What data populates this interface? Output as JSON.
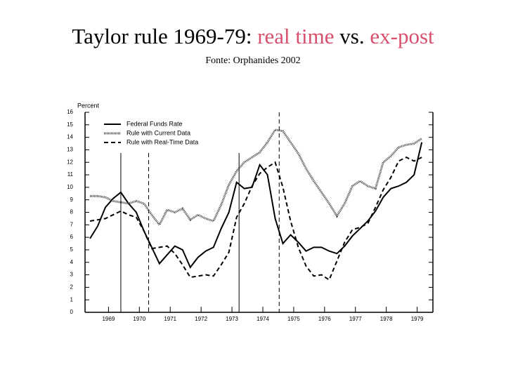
{
  "chart_data": {
    "type": "line",
    "title_parts": [
      "Taylor rule 1969-79:",
      "real time",
      "vs.",
      "ex-post"
    ],
    "title_colors": [
      "#000000",
      "#d9506e",
      "#000000",
      "#d9506e"
    ],
    "subtitle": "Fonte: Orphanides 2002",
    "ylabel": "Percent",
    "xlim": [
      1968.84,
      1980.11
    ],
    "ylim": [
      0,
      16
    ],
    "yticks": [
      0,
      1,
      2,
      3,
      4,
      5,
      6,
      7,
      8,
      9,
      10,
      11,
      12,
      13,
      14,
      15,
      16
    ],
    "xticks": [
      {
        "value": 1969.6,
        "label": "1969"
      },
      {
        "value": 1970.6,
        "label": "1970"
      },
      {
        "value": 1971.6,
        "label": "1971"
      },
      {
        "value": 1972.6,
        "label": "1972"
      },
      {
        "value": 1973.6,
        "label": "1973"
      },
      {
        "value": 1974.6,
        "label": "1974"
      },
      {
        "value": 1975.6,
        "label": "1975"
      },
      {
        "value": 1976.6,
        "label": "1976"
      },
      {
        "value": 1977.6,
        "label": "1977"
      },
      {
        "value": 1978.6,
        "label": "1978"
      },
      {
        "value": 1979.6,
        "label": "1979"
      }
    ],
    "vlines": [
      {
        "x": 1970.0,
        "dash": "none"
      },
      {
        "x": 1970.9,
        "dash": "6,4"
      },
      {
        "x": 1973.83,
        "dash": "none"
      },
      {
        "x": 1975.13,
        "dash": "6,4"
      }
    ],
    "x": [
      1969.0,
      1969.25,
      1969.5,
      1969.75,
      1970.0,
      1970.25,
      1970.5,
      1970.75,
      1971.0,
      1971.25,
      1971.5,
      1971.75,
      1972.0,
      1972.25,
      1972.5,
      1972.75,
      1973.0,
      1973.25,
      1973.5,
      1973.75,
      1974.0,
      1974.25,
      1974.5,
      1974.75,
      1975.0,
      1975.25,
      1975.5,
      1975.75,
      1976.0,
      1976.25,
      1976.5,
      1976.75,
      1977.0,
      1977.25,
      1977.5,
      1977.75,
      1978.0,
      1978.25,
      1978.5,
      1978.75,
      1979.0,
      1979.25,
      1979.5,
      1979.75
    ],
    "series": [
      {
        "name": "Federal Funds Rate",
        "color": "#000000",
        "width": 2,
        "dash": "none",
        "values": [
          5.9,
          6.9,
          8.4,
          9.1,
          9.6,
          8.7,
          8.0,
          6.5,
          5.2,
          3.9,
          4.6,
          5.3,
          5.0,
          3.6,
          4.4,
          4.9,
          5.2,
          6.7,
          8.0,
          10.4,
          9.9,
          10.0,
          11.8,
          11.0,
          7.5,
          5.5,
          6.2,
          5.6,
          4.9,
          5.2,
          5.2,
          4.9,
          4.7,
          5.3,
          6.1,
          6.7,
          7.3,
          8.1,
          9.2,
          9.9,
          10.1,
          10.4,
          11.0,
          13.6
        ]
      },
      {
        "name": "Rule with Current Data",
        "color": "#444444",
        "width": 3,
        "dash": "1,1",
        "values": [
          9.3,
          9.3,
          9.2,
          8.9,
          8.8,
          8.7,
          8.9,
          8.7,
          7.8,
          7.0,
          8.2,
          8.0,
          8.3,
          7.4,
          7.8,
          7.5,
          7.3,
          8.6,
          10.2,
          11.3,
          12.0,
          12.4,
          12.8,
          13.6,
          14.6,
          14.5,
          13.6,
          12.7,
          11.5,
          10.5,
          9.6,
          8.7,
          7.7,
          8.7,
          10.1,
          10.5,
          10.1,
          9.9,
          12.0,
          12.5,
          13.2,
          13.4,
          13.5,
          13.9
        ]
      },
      {
        "name": "Rule with Real-Time Data",
        "color": "#000000",
        "width": 2,
        "dash": "6,4",
        "values": [
          7.3,
          7.4,
          7.5,
          7.8,
          8.1,
          7.8,
          7.6,
          6.5,
          5.1,
          5.2,
          5.3,
          4.7,
          3.8,
          2.8,
          2.9,
          3.0,
          2.9,
          3.8,
          4.8,
          7.6,
          8.7,
          10.1,
          11.1,
          11.6,
          12.0,
          10.0,
          7.3,
          5.2,
          3.7,
          2.9,
          3.0,
          2.6,
          4.1,
          5.6,
          6.6,
          6.8,
          7.1,
          8.4,
          9.8,
          10.8,
          12.1,
          12.4,
          12.1,
          12.4
        ]
      }
    ]
  }
}
